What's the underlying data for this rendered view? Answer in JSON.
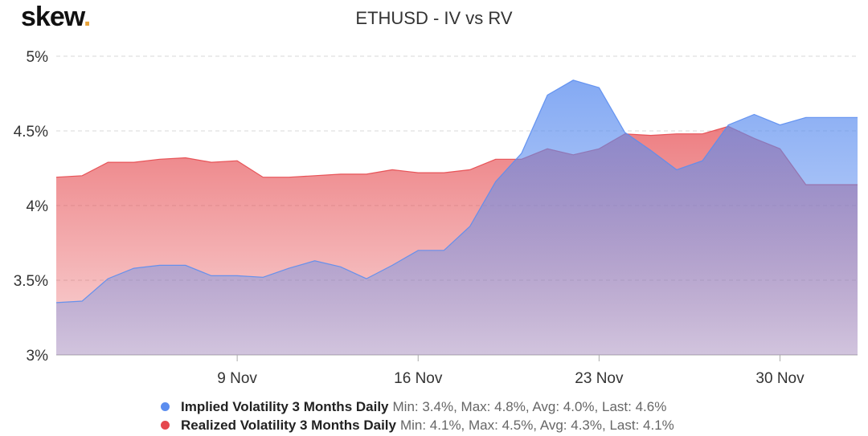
{
  "brand": {
    "name": "skew",
    "dot": "."
  },
  "chart_data": {
    "type": "area",
    "title": "ETHUSD - IV vs RV",
    "xlabel": "",
    "ylabel": "",
    "ylim": [
      3,
      5
    ],
    "xlim": [
      "2020-11-02",
      "2020-12-03"
    ],
    "y_ticks": [
      {
        "value": 3,
        "label": "3%"
      },
      {
        "value": 3.5,
        "label": "3.5%"
      },
      {
        "value": 4,
        "label": "4%"
      },
      {
        "value": 4.5,
        "label": "4.5%"
      },
      {
        "value": 5,
        "label": "5%"
      }
    ],
    "x_ticks": [
      {
        "date": "2020-11-09",
        "label": "9 Nov"
      },
      {
        "date": "2020-11-16",
        "label": "16 Nov"
      },
      {
        "date": "2020-11-23",
        "label": "23 Nov"
      },
      {
        "date": "2020-11-30",
        "label": "30 Nov"
      }
    ],
    "grid": true,
    "legend_position": "bottom",
    "x": [
      "2020-11-02",
      "2020-11-03",
      "2020-11-04",
      "2020-11-05",
      "2020-11-06",
      "2020-11-07",
      "2020-11-08",
      "2020-11-09",
      "2020-11-10",
      "2020-11-11",
      "2020-11-12",
      "2020-11-13",
      "2020-11-14",
      "2020-11-15",
      "2020-11-16",
      "2020-11-17",
      "2020-11-18",
      "2020-11-19",
      "2020-11-20",
      "2020-11-21",
      "2020-11-22",
      "2020-11-23",
      "2020-11-24",
      "2020-11-25",
      "2020-11-26",
      "2020-11-27",
      "2020-11-28",
      "2020-11-29",
      "2020-11-30",
      "2020-12-01",
      "2020-12-02",
      "2020-12-03"
    ],
    "series": [
      {
        "name": "Implied Volatility 3 Months Daily",
        "stats": "Min: 3.4%, Max: 4.8%, Avg: 4.0%, Last: 4.6%",
        "color": "#5b8def",
        "values": [
          3.35,
          3.36,
          3.51,
          3.58,
          3.6,
          3.6,
          3.53,
          3.53,
          3.52,
          3.58,
          3.63,
          3.59,
          3.51,
          3.6,
          3.7,
          3.7,
          3.86,
          4.16,
          4.35,
          4.74,
          4.84,
          4.79,
          4.49,
          4.37,
          4.24,
          4.3,
          4.54,
          4.61,
          4.54,
          4.59,
          4.59,
          4.59
        ]
      },
      {
        "name": "Realized Volatility 3 Months Daily",
        "stats": "Min: 4.1%, Max: 4.5%, Avg: 4.3%, Last: 4.1%",
        "color": "#e5484d",
        "values": [
          4.19,
          4.2,
          4.29,
          4.29,
          4.31,
          4.32,
          4.29,
          4.3,
          4.19,
          4.19,
          4.2,
          4.21,
          4.21,
          4.24,
          4.22,
          4.22,
          4.24,
          4.31,
          4.31,
          4.38,
          4.34,
          4.38,
          4.48,
          4.47,
          4.48,
          4.48,
          4.53,
          4.45,
          4.38,
          4.14,
          4.14,
          4.14
        ]
      }
    ]
  }
}
